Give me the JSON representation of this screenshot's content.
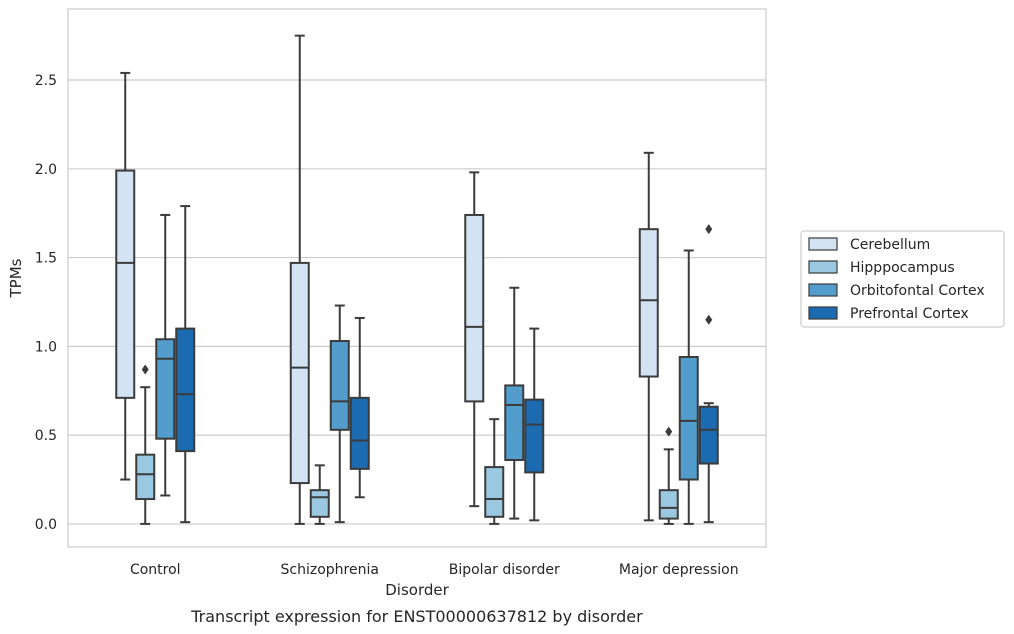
{
  "chart_data": {
    "type": "box",
    "caption": "Transcript expression for ENST00000637812 by disorder",
    "xlabel": "Disorder",
    "ylabel": "TPMs",
    "ylim": [
      -0.13,
      2.9
    ],
    "yticks": [
      "0.0",
      "0.5",
      "1.0",
      "1.5",
      "2.0",
      "2.5"
    ],
    "categories": [
      "Control",
      "Schizophrenia",
      "Bipolar disorder",
      "Major depression"
    ],
    "grid": "horizontal",
    "legend_position": "right",
    "series": [
      {
        "name": "Cerebellum",
        "color": "#d3e3f3",
        "boxes": [
          {
            "whisker_low": 0.25,
            "q1": 0.71,
            "median": 1.47,
            "q3": 1.99,
            "whisker_high": 2.54,
            "outliers": []
          },
          {
            "whisker_low": 0.0,
            "q1": 0.23,
            "median": 0.88,
            "q3": 1.47,
            "whisker_high": 2.75,
            "outliers": []
          },
          {
            "whisker_low": 0.1,
            "q1": 0.69,
            "median": 1.11,
            "q3": 1.74,
            "whisker_high": 1.98,
            "outliers": []
          },
          {
            "whisker_low": 0.02,
            "q1": 0.83,
            "median": 1.26,
            "q3": 1.66,
            "whisker_high": 2.09,
            "outliers": []
          }
        ]
      },
      {
        "name": "Hipppocampus",
        "color": "#9ac8e0",
        "boxes": [
          {
            "whisker_low": 0.0,
            "q1": 0.14,
            "median": 0.28,
            "q3": 0.39,
            "whisker_high": 0.77,
            "outliers": [
              0.87
            ]
          },
          {
            "whisker_low": 0.0,
            "q1": 0.04,
            "median": 0.15,
            "q3": 0.19,
            "whisker_high": 0.33,
            "outliers": []
          },
          {
            "whisker_low": 0.0,
            "q1": 0.04,
            "median": 0.14,
            "q3": 0.32,
            "whisker_high": 0.59,
            "outliers": []
          },
          {
            "whisker_low": 0.0,
            "q1": 0.03,
            "median": 0.09,
            "q3": 0.19,
            "whisker_high": 0.42,
            "outliers": [
              0.52
            ]
          }
        ]
      },
      {
        "name": "Orbitofontal Cortex",
        "color": "#529dcc",
        "boxes": [
          {
            "whisker_low": 0.16,
            "q1": 0.48,
            "median": 0.93,
            "q3": 1.04,
            "whisker_high": 1.74,
            "outliers": []
          },
          {
            "whisker_low": 0.01,
            "q1": 0.53,
            "median": 0.69,
            "q3": 1.03,
            "whisker_high": 1.23,
            "outliers": []
          },
          {
            "whisker_low": 0.03,
            "q1": 0.36,
            "median": 0.67,
            "q3": 0.78,
            "whisker_high": 1.33,
            "outliers": []
          },
          {
            "whisker_low": 0.0,
            "q1": 0.25,
            "median": 0.58,
            "q3": 0.94,
            "whisker_high": 1.54,
            "outliers": []
          }
        ]
      },
      {
        "name": "Prefrontal Cortex",
        "color": "#1c6aaf",
        "boxes": [
          {
            "whisker_low": 0.01,
            "q1": 0.41,
            "median": 0.73,
            "q3": 1.1,
            "whisker_high": 1.79,
            "outliers": []
          },
          {
            "whisker_low": 0.15,
            "q1": 0.31,
            "median": 0.47,
            "q3": 0.71,
            "whisker_high": 1.16,
            "outliers": []
          },
          {
            "whisker_low": 0.02,
            "q1": 0.29,
            "median": 0.56,
            "q3": 0.7,
            "whisker_high": 1.1,
            "outliers": []
          },
          {
            "whisker_low": 0.01,
            "q1": 0.34,
            "median": 0.53,
            "q3": 0.66,
            "whisker_high": 0.68,
            "outliers": [
              1.15,
              1.66
            ]
          }
        ]
      }
    ]
  }
}
